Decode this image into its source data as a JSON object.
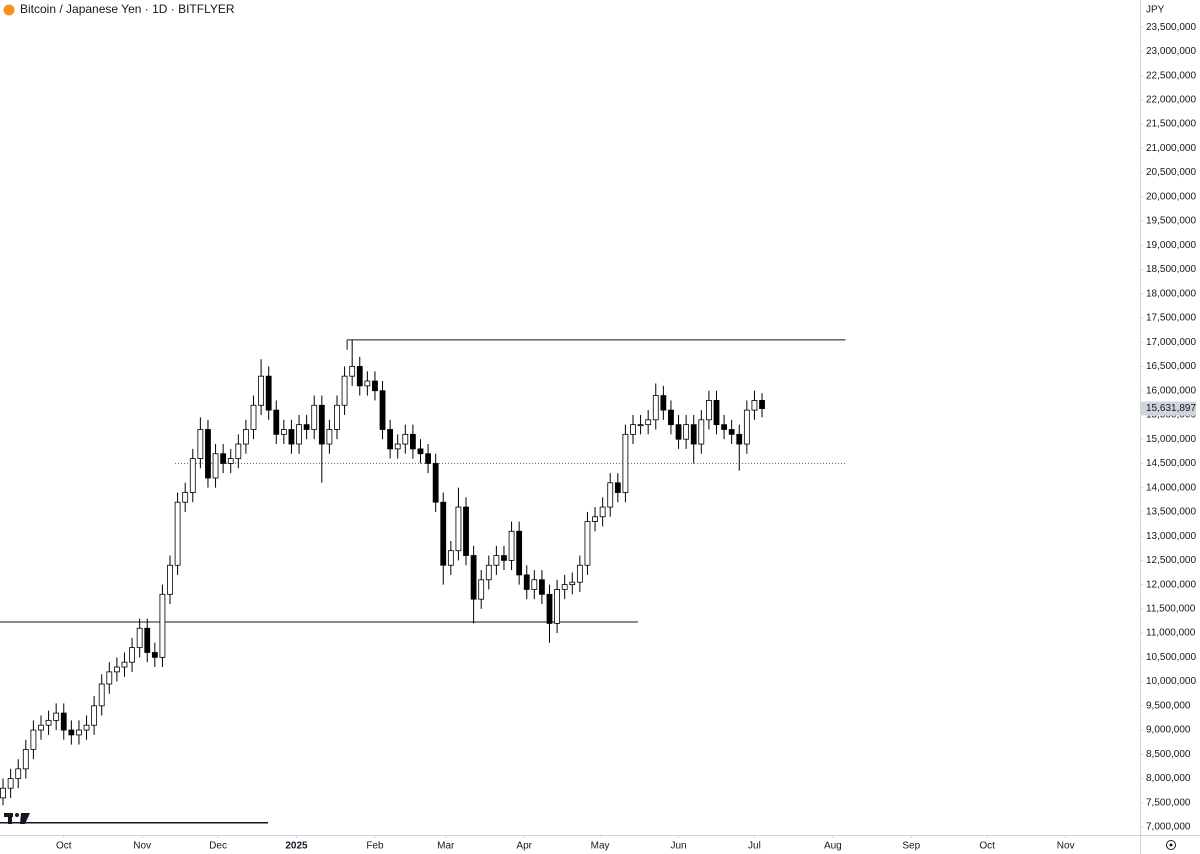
{
  "chart_data": {
    "type": "candlestick",
    "title": "Bitcoin / Japanese Yen · 1D · BITFLYER",
    "y_axis_label": "JPY",
    "up_color": "#ffffff",
    "down_color": "#000000",
    "wick_color": "#000000",
    "grid": false,
    "xlim": [
      -1.2,
      449.4
    ],
    "xticks": [
      {
        "value": 24,
        "label": "Oct"
      },
      {
        "value": 55,
        "label": "Nov"
      },
      {
        "value": 85,
        "label": "Dec"
      },
      {
        "value": 116,
        "label": "2025"
      },
      {
        "value": 147,
        "label": "Feb"
      },
      {
        "value": 175,
        "label": "Mar"
      },
      {
        "value": 206,
        "label": "Apr"
      },
      {
        "value": 236,
        "label": "May"
      },
      {
        "value": 267,
        "label": "Jun"
      },
      {
        "value": 297,
        "label": "Jul"
      },
      {
        "value": 328,
        "label": "Aug"
      },
      {
        "value": 359,
        "label": "Sep"
      },
      {
        "value": 389,
        "label": "Oct"
      },
      {
        "value": 420,
        "label": "Nov"
      }
    ],
    "ylim": [
      6835000,
      24060000
    ],
    "yticks": [
      {
        "value": 7000000,
        "label": "7,000,000"
      },
      {
        "value": 7500000,
        "label": "7,500,000"
      },
      {
        "value": 8000000,
        "label": "8,000,000"
      },
      {
        "value": 8500000,
        "label": "8,500,000"
      },
      {
        "value": 9000000,
        "label": "9,000,000"
      },
      {
        "value": 9500000,
        "label": "9,500,000"
      },
      {
        "value": 10000000,
        "label": "10,000,000"
      },
      {
        "value": 10500000,
        "label": "10,500,000"
      },
      {
        "value": 11000000,
        "label": "11,000,000"
      },
      {
        "value": 11500000,
        "label": "11,500,000"
      },
      {
        "value": 12000000,
        "label": "12,000,000"
      },
      {
        "value": 12500000,
        "label": "12,500,000"
      },
      {
        "value": 13000000,
        "label": "13,000,000"
      },
      {
        "value": 13500000,
        "label": "13,500,000"
      },
      {
        "value": 14000000,
        "label": "14,000,000"
      },
      {
        "value": 14500000,
        "label": "14,500,000"
      },
      {
        "value": 15000000,
        "label": "15,000,000"
      },
      {
        "value": 15500000,
        "label": "15,500,000"
      },
      {
        "value": 16000000,
        "label": "16,000,000"
      },
      {
        "value": 16500000,
        "label": "16,500,000"
      },
      {
        "value": 17000000,
        "label": "17,000,000"
      },
      {
        "value": 17500000,
        "label": "17,500,000"
      },
      {
        "value": 18000000,
        "label": "18,000,000"
      },
      {
        "value": 18500000,
        "label": "18,500,000"
      },
      {
        "value": 19000000,
        "label": "19,000,000"
      },
      {
        "value": 19500000,
        "label": "19,500,000"
      },
      {
        "value": 20000000,
        "label": "20,000,000"
      },
      {
        "value": 20500000,
        "label": "20,500,000"
      },
      {
        "value": 21000000,
        "label": "21,000,000"
      },
      {
        "value": 21500000,
        "label": "21,500,000"
      },
      {
        "value": 22000000,
        "label": "22,000,000"
      },
      {
        "value": 22500000,
        "label": "22,500,000"
      },
      {
        "value": 23000000,
        "label": "23,000,000"
      },
      {
        "value": 23500000,
        "label": "23,500,000"
      }
    ],
    "x": [
      0,
      3,
      6,
      9,
      12,
      15,
      18,
      21,
      24,
      27,
      30,
      33,
      36,
      39,
      42,
      45,
      48,
      51,
      54,
      57,
      60,
      63,
      66,
      69,
      72,
      75,
      78,
      81,
      84,
      87,
      90,
      93,
      96,
      99,
      102,
      105,
      108,
      111,
      114,
      117,
      120,
      123,
      126,
      129,
      132,
      135,
      138,
      141,
      144,
      147,
      150,
      153,
      156,
      159,
      162,
      165,
      168,
      171,
      174,
      177,
      180,
      183,
      186,
      189,
      192,
      195,
      198,
      201,
      204,
      207,
      210,
      213,
      216,
      219,
      222,
      225,
      228,
      231,
      234,
      237,
      240,
      243,
      246,
      249,
      252,
      255,
      258,
      261,
      264,
      267,
      270,
      273,
      276,
      279,
      282,
      285,
      288,
      291,
      294,
      297,
      300
    ],
    "open": [
      7600000,
      7800000,
      8000000,
      8200000,
      8600000,
      9000000,
      9100000,
      9200000,
      9350000,
      9000000,
      8900000,
      9000000,
      9100000,
      9500000,
      9950000,
      10200000,
      10300000,
      10400000,
      10700000,
      11100000,
      10600000,
      10500000,
      11800000,
      12400000,
      13700000,
      13900000,
      14600000,
      15200000,
      14200000,
      14700000,
      14500000,
      14600000,
      14900000,
      15200000,
      15700000,
      16300000,
      15600000,
      15100000,
      15200000,
      14900000,
      15300000,
      15200000,
      15700000,
      14900000,
      15200000,
      15700000,
      16300000,
      16500000,
      16100000,
      16200000,
      16000000,
      15200000,
      14800000,
      14900000,
      15100000,
      14800000,
      14700000,
      14500000,
      13700000,
      12400000,
      12700000,
      13600000,
      12600000,
      11700000,
      12100000,
      12400000,
      12600000,
      12500000,
      13100000,
      12200000,
      11900000,
      12100000,
      11800000,
      11200000,
      11900000,
      12000000,
      12050000,
      12400000,
      13300000,
      13400000,
      13600000,
      14100000,
      13900000,
      15100000,
      15300000,
      15300000,
      15400000,
      15900000,
      15600000,
      15300000,
      15000000,
      15300000,
      14900000,
      15400000,
      15800000,
      15300000,
      15200000,
      15100000,
      14900000,
      15600000,
      15800000
    ],
    "high": [
      8000000,
      8200000,
      8400000,
      8800000,
      9200000,
      9300000,
      9400000,
      9550000,
      9550000,
      9200000,
      9200000,
      9300000,
      9700000,
      10150000,
      10400000,
      10500000,
      10600000,
      10900000,
      11300000,
      11300000,
      10800000,
      12000000,
      12600000,
      13900000,
      14100000,
      14800000,
      15450000,
      15400000,
      14900000,
      14900000,
      14800000,
      15100000,
      15400000,
      15900000,
      16650000,
      16500000,
      15800000,
      15400000,
      15400000,
      15500000,
      15500000,
      15900000,
      15900000,
      15400000,
      15900000,
      16500000,
      17050000,
      16700000,
      16400000,
      16400000,
      16200000,
      15400000,
      15100000,
      15300000,
      15300000,
      15000000,
      14900000,
      14700000,
      13900000,
      12900000,
      14000000,
      13800000,
      12800000,
      12300000,
      12600000,
      12800000,
      12800000,
      13300000,
      13300000,
      12400000,
      12300000,
      12300000,
      12000000,
      12100000,
      12200000,
      12250000,
      12600000,
      13500000,
      13600000,
      13800000,
      14300000,
      14300000,
      15300000,
      15500000,
      15500000,
      15600000,
      16150000,
      16100000,
      15800000,
      15500000,
      15500000,
      15500000,
      15600000,
      16000000,
      16000000,
      15500000,
      15400000,
      15300000,
      15800000,
      16000000,
      15950000
    ],
    "low": [
      7450000,
      7600000,
      7800000,
      8000000,
      8400000,
      8800000,
      8900000,
      9000000,
      8800000,
      8700000,
      8700000,
      8800000,
      8900000,
      9300000,
      9750000,
      10000000,
      10100000,
      10200000,
      10500000,
      10400000,
      10300000,
      10300000,
      11600000,
      12200000,
      13500000,
      13700000,
      14400000,
      14000000,
      14000000,
      14300000,
      14300000,
      14400000,
      14700000,
      15000000,
      15500000,
      15400000,
      14900000,
      14900000,
      14700000,
      14700000,
      15000000,
      15000000,
      14100000,
      14700000,
      15000000,
      15500000,
      16100000,
      15900000,
      15900000,
      15800000,
      15000000,
      14600000,
      14600000,
      14700000,
      14600000,
      14500000,
      14300000,
      13500000,
      12000000,
      12200000,
      12500000,
      12400000,
      11200000,
      11500000,
      11900000,
      12200000,
      12300000,
      12300000,
      12000000,
      11700000,
      11700000,
      11600000,
      10800000,
      11000000,
      11700000,
      11800000,
      11850000,
      12200000,
      13100000,
      13200000,
      13400000,
      13700000,
      13700000,
      14900000,
      15100000,
      15100000,
      15200000,
      15400000,
      15100000,
      14800000,
      14800000,
      14500000,
      14700000,
      15200000,
      15100000,
      15000000,
      14900000,
      14350000,
      14700000,
      15400000,
      15450000
    ],
    "close": [
      7800000,
      8000000,
      8200000,
      8600000,
      9000000,
      9100000,
      9200000,
      9350000,
      9000000,
      8900000,
      9000000,
      9100000,
      9500000,
      9950000,
      10200000,
      10300000,
      10400000,
      10700000,
      11100000,
      10600000,
      10500000,
      11800000,
      12400000,
      13700000,
      13900000,
      14600000,
      15200000,
      14200000,
      14700000,
      14500000,
      14600000,
      14900000,
      15200000,
      15700000,
      16300000,
      15600000,
      15100000,
      15200000,
      14900000,
      15300000,
      15200000,
      15700000,
      14900000,
      15200000,
      15700000,
      16300000,
      16500000,
      16100000,
      16200000,
      16000000,
      15200000,
      14800000,
      14900000,
      15100000,
      14800000,
      14700000,
      14500000,
      13700000,
      12400000,
      12700000,
      13600000,
      12600000,
      11700000,
      12100000,
      12400000,
      12600000,
      12500000,
      13100000,
      12200000,
      11900000,
      12100000,
      11800000,
      11200000,
      11900000,
      12000000,
      12050000,
      12400000,
      13300000,
      13400000,
      13600000,
      14100000,
      13900000,
      15100000,
      15300000,
      15300000,
      15400000,
      15900000,
      15600000,
      15300000,
      15000000,
      15300000,
      14900000,
      15400000,
      15800000,
      15300000,
      15200000,
      15100000,
      14900000,
      15600000,
      15800000,
      15631897
    ],
    "last_price": {
      "value": 15631897,
      "label": "15,631,897"
    },
    "levels": [
      {
        "price": 11230000,
        "x": [
          -1.2,
          251
        ],
        "style": "solid"
      },
      {
        "price": 14500000,
        "x": [
          68,
          333
        ],
        "style": "dotted"
      },
      {
        "price": 17050000,
        "x": [
          136,
          333
        ],
        "style": "solid"
      }
    ]
  }
}
